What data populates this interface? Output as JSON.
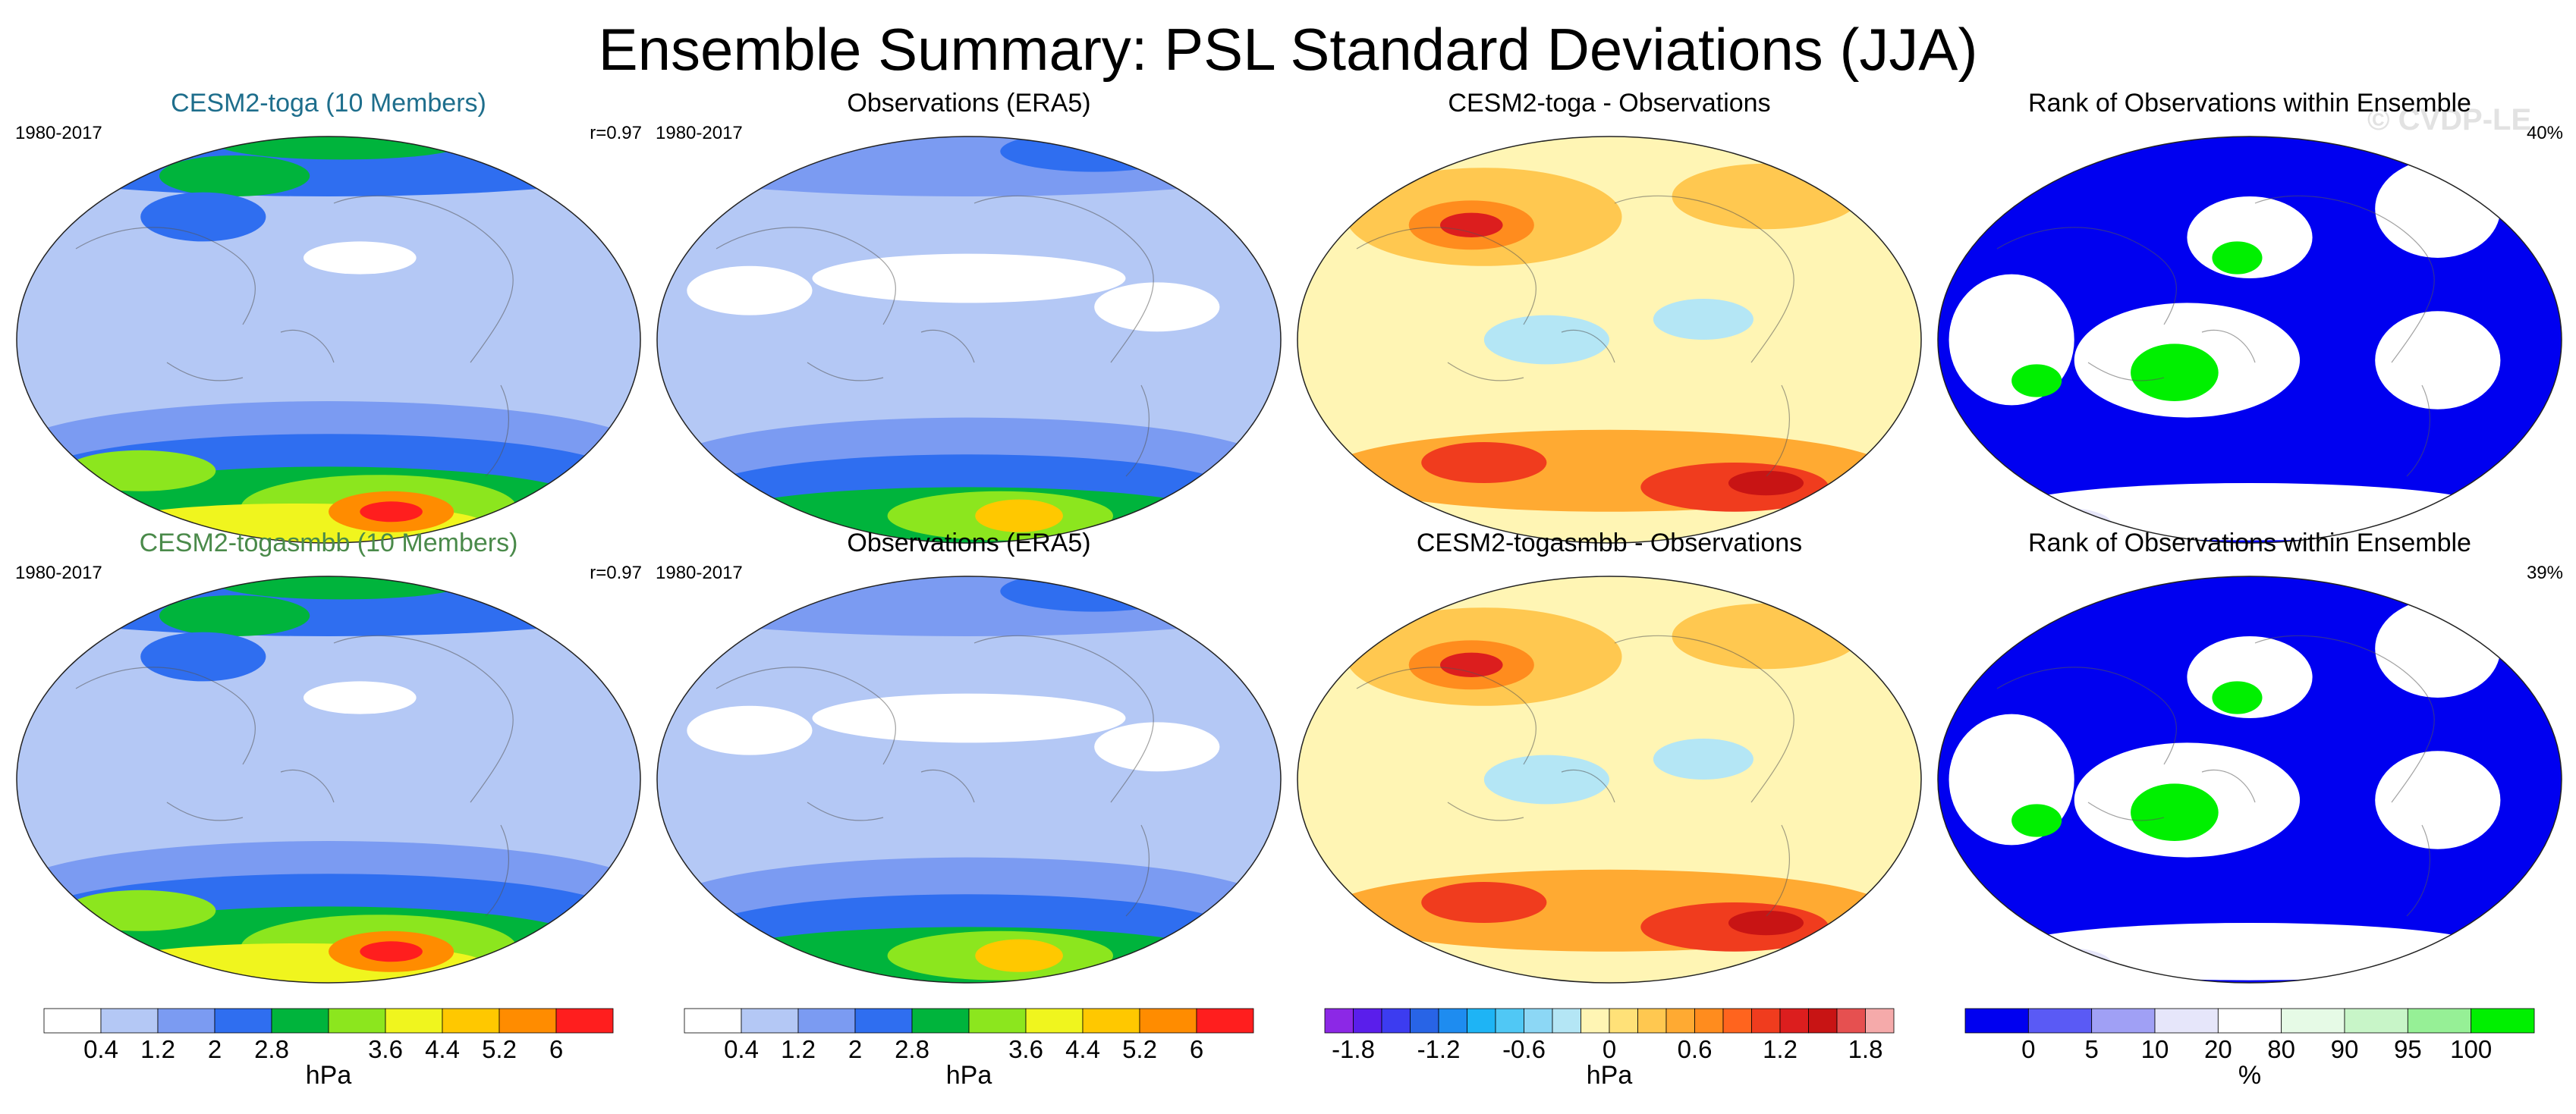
{
  "figure": {
    "title": "Ensemble Summary: PSL Standard Deviations (JJA)",
    "watermark": "© CVDP-LE"
  },
  "panels": [
    {
      "id": "r1c1",
      "kind": "sd",
      "title": "CESM2-toga (10 Members)",
      "title_color": "#1e6e8c",
      "left_note": "1980-2017",
      "right_note": "r=0.97"
    },
    {
      "id": "r1c2",
      "kind": "sd_obs",
      "title": "Observations (ERA5)",
      "title_color": "#000000",
      "left_note": "1980-2017",
      "right_note": ""
    },
    {
      "id": "r1c3",
      "kind": "diff",
      "title": "CESM2-toga - Observations",
      "title_color": "#000000",
      "left_note": "",
      "right_note": ""
    },
    {
      "id": "r1c4",
      "kind": "rank",
      "title": "Rank of Observations within Ensemble",
      "title_color": "#000000",
      "left_note": "",
      "right_note": "40%"
    },
    {
      "id": "r2c1",
      "kind": "sd",
      "title": "CESM2-togasmbb (10 Members)",
      "title_color": "#4a8a4a",
      "left_note": "1980-2017",
      "right_note": "r=0.97"
    },
    {
      "id": "r2c2",
      "kind": "sd_obs",
      "title": "Observations (ERA5)",
      "title_color": "#000000",
      "left_note": "1980-2017",
      "right_note": ""
    },
    {
      "id": "r2c3",
      "kind": "diff",
      "title": "CESM2-togasmbb - Observations",
      "title_color": "#000000",
      "left_note": "",
      "right_note": ""
    },
    {
      "id": "r2c4",
      "kind": "rank",
      "title": "Rank of Observations within Ensemble",
      "title_color": "#000000",
      "left_note": "",
      "right_note": "39%"
    }
  ],
  "colorbars": [
    {
      "id": "cb1",
      "unit": "hPa",
      "colors": [
        "#ffffff",
        "#b4c8f5",
        "#7b9bf2",
        "#2f6ef0",
        "#00b43c",
        "#8ce61e",
        "#f0f51e",
        "#ffc800",
        "#ff8c00",
        "#ff1e1e"
      ],
      "labels": [
        "0.4",
        "1.2",
        "2",
        "2.8",
        "3.6",
        "4.4",
        "5.2",
        "6"
      ]
    },
    {
      "id": "cb2",
      "unit": "hPa",
      "colors": [
        "#ffffff",
        "#b4c8f5",
        "#7b9bf2",
        "#2f6ef0",
        "#00b43c",
        "#8ce61e",
        "#f0f51e",
        "#ffc800",
        "#ff8c00",
        "#ff1e1e"
      ],
      "labels": [
        "0.4",
        "1.2",
        "2",
        "2.8",
        "3.6",
        "4.4",
        "5.2",
        "6"
      ]
    },
    {
      "id": "cb3",
      "unit": "hPa",
      "colors": [
        "#8c28e6",
        "#5a1eeb",
        "#3c3cf0",
        "#2864e6",
        "#1e8cf0",
        "#1eb4f5",
        "#50c8f5",
        "#8cd7f5",
        "#b4e6f5",
        "#fff5b4",
        "#ffe178",
        "#ffc850",
        "#ffaa32",
        "#ff8c1e",
        "#ff641e",
        "#f03c1e",
        "#dc1e1e",
        "#c81414",
        "#e65050",
        "#f5aaaa"
      ],
      "labels": [
        "-1.8",
        "-1.2",
        "-0.6",
        "0",
        "0.6",
        "1.2",
        "1.8"
      ]
    },
    {
      "id": "cb4",
      "unit": "%",
      "colors": [
        "#0000f0",
        "#5a5af5",
        "#a0a0f5",
        "#e6e6fa",
        "#ffffff",
        "#e6fae6",
        "#c8f5c8",
        "#96f096",
        "#00f000"
      ],
      "labels": [
        "0",
        "5",
        "10",
        "20",
        "80",
        "90",
        "95",
        "100"
      ]
    }
  ]
}
